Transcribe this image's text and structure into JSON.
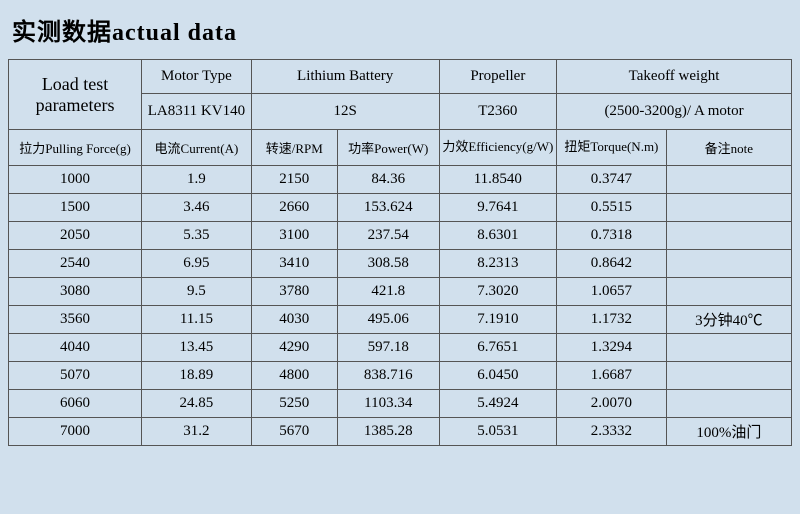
{
  "title": "实测数据actual data",
  "headers": {
    "param": "Load test parameters",
    "spec_labels": [
      "Motor Type",
      "Lithium Battery",
      "Propeller",
      "Takeoff weight"
    ],
    "spec_values": [
      "LA8311 KV140",
      "12S",
      "T2360",
      "(2500-3200g)/ A motor"
    ],
    "cols": [
      "拉力Pulling Force(g)",
      "电流Current(A)",
      "转速/RPM",
      "功率Power(W)",
      "力效Efficiency(g/W)",
      "扭矩Torque(N.m)",
      "备注note"
    ]
  },
  "rows": [
    [
      "1000",
      "1.9",
      "2150",
      "84.36",
      "11.8540",
      "0.3747",
      ""
    ],
    [
      "1500",
      "3.46",
      "2660",
      "153.624",
      "9.7641",
      "0.5515",
      ""
    ],
    [
      "2050",
      "5.35",
      "3100",
      "237.54",
      "8.6301",
      "0.7318",
      ""
    ],
    [
      "2540",
      "6.95",
      "3410",
      "308.58",
      "8.2313",
      "0.8642",
      ""
    ],
    [
      "3080",
      "9.5",
      "3780",
      "421.8",
      "7.3020",
      "1.0657",
      ""
    ],
    [
      "3560",
      "11.15",
      "4030",
      "495.06",
      "7.1910",
      "1.1732",
      "3分钟40℃"
    ],
    [
      "4040",
      "13.45",
      "4290",
      "597.18",
      "6.7651",
      "1.3294",
      ""
    ],
    [
      "5070",
      "18.89",
      "4800",
      "838.716",
      "6.0450",
      "1.6687",
      ""
    ],
    [
      "6060",
      "24.85",
      "5250",
      "1103.34",
      "5.4924",
      "2.0070",
      ""
    ],
    [
      "7000",
      "31.2",
      "5670",
      "1385.28",
      "5.0531",
      "2.3332",
      "100%油门"
    ]
  ],
  "style": {
    "background_color": "#d1e0ed",
    "border_color": "#555555",
    "text_color": "#000000",
    "title_fontsize": 24,
    "header_fontsize": 18,
    "data_fontsize": 15
  }
}
